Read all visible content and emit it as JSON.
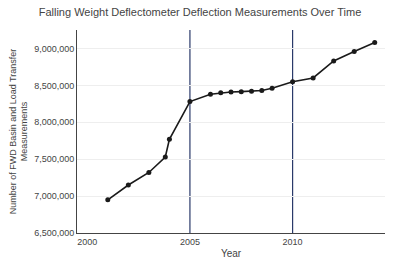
{
  "chart_data": {
    "type": "line",
    "title": "Falling Weight Deflectometer Deflection Measurements Over Time",
    "xlabel": "Year",
    "ylabel": "Number of FWD Basin and Load Transfer\nMeasurements",
    "x": [
      2001,
      2002,
      2003,
      2003.8,
      2004,
      2005,
      2006,
      2006.5,
      2007,
      2007.5,
      2008,
      2008.5,
      2009,
      2010,
      2011,
      2012,
      2013,
      2014
    ],
    "values": [
      6950000,
      7150000,
      7320000,
      7530000,
      7770000,
      8280000,
      8380000,
      8400000,
      8410000,
      8415000,
      8420000,
      8430000,
      8460000,
      8550000,
      8600000,
      8830000,
      8960000,
      9080000
    ],
    "color": "#1a1a1a",
    "marker": "circle",
    "vlines": [
      {
        "value": 2005,
        "color": "#2a3a6a"
      },
      {
        "value": 2010,
        "color": "#2a3a6a"
      }
    ],
    "xlim": [
      1999.5,
      2014.5
    ],
    "ylim": [
      6500000,
      9250000
    ],
    "xticks": [
      2000,
      2005,
      2010
    ],
    "yticks": [
      {
        "value": 6500000,
        "label": "6,500,000"
      },
      {
        "value": 7000000,
        "label": "7,000,000"
      },
      {
        "value": 7500000,
        "label": "7,500,000"
      },
      {
        "value": 8000000,
        "label": "8,000,000"
      },
      {
        "value": 8500000,
        "label": "8,500,000"
      },
      {
        "value": 9000000,
        "label": "9,000,000"
      }
    ],
    "grid": "y"
  }
}
